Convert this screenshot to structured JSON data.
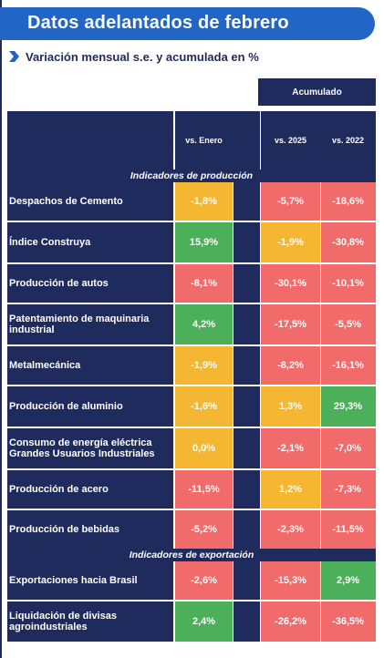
{
  "title": "Datos adelantados de febrero",
  "subtitle": "Variación mensual s.e. y acumulada en %",
  "header": {
    "acumulado": "Acumulado",
    "col_monthly": "vs. Enero",
    "col_acc_2025": "vs. 2025",
    "col_acc_2022": "vs. 2022"
  },
  "sections": {
    "produccion": "Indicadores de producción",
    "exportacion": "Indicadores de exportación"
  },
  "colors": {
    "navy": "#1f2b5c",
    "blue": "#2166c7",
    "red": "#f26b6b",
    "yellow": "#f5b731",
    "green": "#4caf5a"
  },
  "rows": [
    {
      "label": "Despachos de Cemento",
      "m": "-1,8%",
      "mc": "yellow",
      "a25": "-5,7%",
      "a25c": "red",
      "a22": "-18,6%",
      "a22c": "red"
    },
    {
      "label": "Índice Construya",
      "m": "15,9%",
      "mc": "green",
      "a25": "-1,9%",
      "a25c": "yellow",
      "a22": "-30,8%",
      "a22c": "red"
    },
    {
      "label": "Producción de autos",
      "m": "-8,1%",
      "mc": "red",
      "a25": "-30,1%",
      "a25c": "red",
      "a22": "-10,1%",
      "a22c": "red"
    },
    {
      "label": "Patentamiento de maquinaria industrial",
      "m": "4,2%",
      "mc": "green",
      "a25": "-17,5%",
      "a25c": "red",
      "a22": "-5,5%",
      "a22c": "red"
    },
    {
      "label": "Metalmecánica",
      "m": "-1,9%",
      "mc": "yellow",
      "a25": "-8,2%",
      "a25c": "red",
      "a22": "-16,1%",
      "a22c": "red"
    },
    {
      "label": "Producción de aluminio",
      "m": "-1,6%",
      "mc": "yellow",
      "a25": "1,3%",
      "a25c": "yellow",
      "a22": "29,3%",
      "a22c": "green"
    },
    {
      "label": "Consumo de energía eléctrica Grandes Usuarios Industriales",
      "m": "0,0%",
      "mc": "yellow",
      "a25": "-2,1%",
      "a25c": "red",
      "a22": "-7,0%",
      "a22c": "red"
    },
    {
      "label": "Producción de acero",
      "m": "-11,5%",
      "mc": "red",
      "a25": "1,2%",
      "a25c": "yellow",
      "a22": "-7,3%",
      "a22c": "red"
    },
    {
      "label": "Producción de bebidas",
      "m": "-5,2%",
      "mc": "red",
      "a25": "-2,3%",
      "a25c": "red",
      "a22": "-11,5%",
      "a22c": "red"
    },
    {
      "label": "Exportaciones hacia Brasil",
      "m": "-2,6%",
      "mc": "red",
      "a25": "-15,3%",
      "a25c": "red",
      "a22": "2,9%",
      "a22c": "green"
    },
    {
      "label": "Liquidación de divisas agroindustriales",
      "m": "2,4%",
      "mc": "green",
      "a25": "-26,2%",
      "a25c": "red",
      "a22": "-36,5%",
      "a22c": "red"
    }
  ]
}
